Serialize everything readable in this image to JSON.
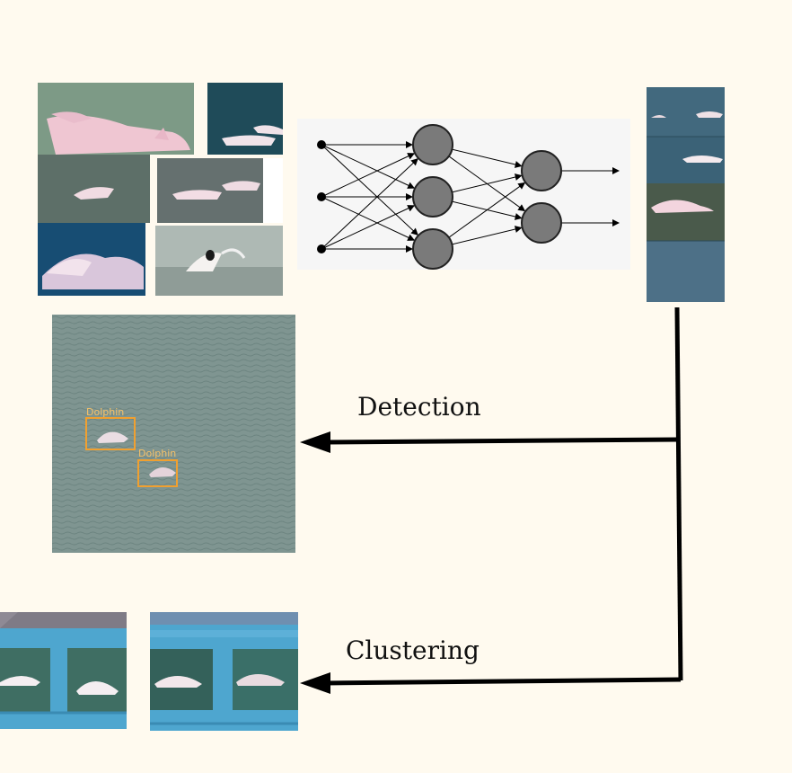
{
  "labels": {
    "detection": "Detection",
    "clustering": "Clustering",
    "bbox_label_1": "Dolphin",
    "bbox_label_2": "Dolphin"
  },
  "colors": {
    "background": "#fffaef",
    "neuron_fill": "#7a7a7a",
    "bbox": "#f0a030",
    "water_green": "#6f8e83",
    "water_blue": "#2f5f78",
    "dolphin_pink": "#f2d3dc",
    "strip_blue": "#4ea6cf",
    "arrow": "#000000"
  },
  "icons": [
    "dolphin-collage-image",
    "neural-network-diagram",
    "dolphin-strip-image",
    "detection-result-image",
    "cluster-panel-image"
  ]
}
